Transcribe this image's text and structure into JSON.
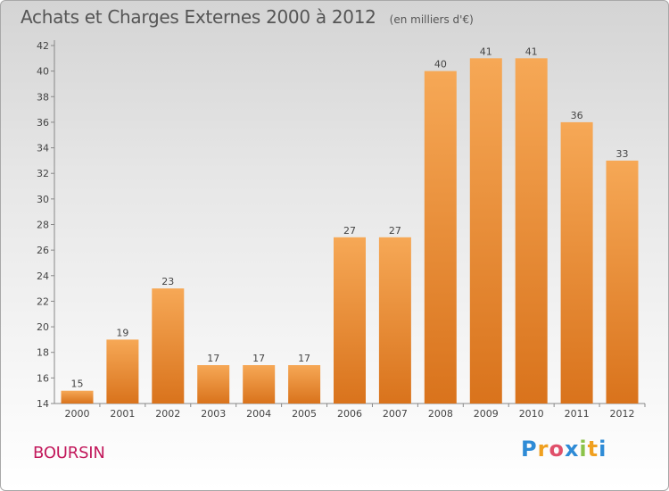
{
  "header": {
    "title": "Achats et Charges Externes 2000 à 2012",
    "subtitle": "(en milliers d'€)"
  },
  "place_label": "BOURSIN",
  "logo": {
    "text": "Proxiti",
    "letters": [
      "P",
      "r",
      "o",
      "x",
      "i",
      "t",
      "i"
    ]
  },
  "colors": {
    "bar_light": "#f6a856",
    "bar_dark": "#d9731c",
    "place": "#c2185b",
    "logo_letters": [
      "#2e8bd6",
      "#f0a020",
      "#e0506a",
      "#2e8bd6",
      "#8bc34a",
      "#f0a020",
      "#2e8bd6"
    ]
  },
  "chart_data": {
    "type": "bar",
    "categories": [
      "2000",
      "2001",
      "2002",
      "2003",
      "2004",
      "2005",
      "2006",
      "2007",
      "2008",
      "2009",
      "2010",
      "2011",
      "2012"
    ],
    "values": [
      15,
      19,
      23,
      17,
      17,
      17,
      27,
      27,
      40,
      41,
      41,
      36,
      33
    ],
    "ylim": [
      14,
      42
    ],
    "yticks": [
      14,
      16,
      18,
      20,
      22,
      24,
      26,
      28,
      30,
      32,
      34,
      36,
      38,
      40,
      42
    ],
    "grid": false,
    "xlabel": "",
    "ylabel": ""
  }
}
